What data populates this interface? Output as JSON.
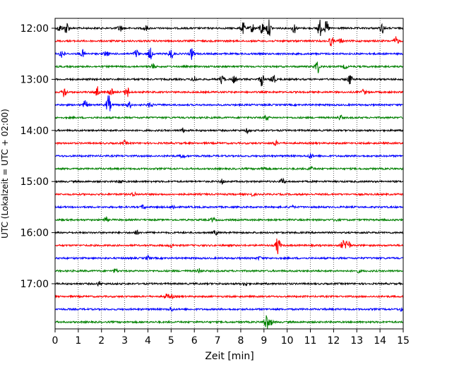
{
  "chart_data": {
    "type": "line",
    "title": "",
    "xlabel": "Zeit  [min]",
    "ylabel": "UTC (Lokalzeit = UTC + 02:00)",
    "xlim": [
      0,
      15
    ],
    "x_ticks": [
      "0",
      "1",
      "2",
      "3",
      "4",
      "5",
      "6",
      "7",
      "8",
      "9",
      "10",
      "11",
      "12",
      "13",
      "14",
      "15"
    ],
    "y_tick_labels": [
      "12:00",
      "13:00",
      "14:00",
      "15:00",
      "16:00",
      "17:00"
    ],
    "trace_interval_minutes": 15,
    "grid": "vertical dotted at each minute",
    "colors": [
      "#000000",
      "#ff0000",
      "#0000ff",
      "#008000"
    ],
    "series": [
      {
        "start": "12:00",
        "color": "#000000",
        "events": [
          {
            "t": 0.2,
            "amp": 5
          },
          {
            "t": 0.5,
            "amp": 9
          },
          {
            "t": 2.8,
            "amp": 5
          },
          {
            "t": 3.9,
            "amp": 4
          },
          {
            "t": 8.1,
            "amp": 8
          },
          {
            "t": 8.5,
            "amp": 6
          },
          {
            "t": 8.9,
            "amp": 9
          },
          {
            "t": 9.2,
            "amp": 12
          },
          {
            "t": 10.3,
            "amp": 7
          },
          {
            "t": 11.4,
            "amp": 12
          },
          {
            "t": 11.7,
            "amp": 10
          },
          {
            "t": 14.1,
            "amp": 7
          }
        ]
      },
      {
        "start": "12:15",
        "color": "#ff0000",
        "events": [
          {
            "t": 11.9,
            "amp": 7
          },
          {
            "t": 12.3,
            "amp": 3
          },
          {
            "t": 14.7,
            "amp": 6
          }
        ]
      },
      {
        "start": "12:30",
        "color": "#0000ff",
        "events": [
          {
            "t": 0.3,
            "amp": 7
          },
          {
            "t": 1.2,
            "amp": 5
          },
          {
            "t": 2.2,
            "amp": 4
          },
          {
            "t": 3.5,
            "amp": 6
          },
          {
            "t": 4.1,
            "amp": 8
          },
          {
            "t": 5.0,
            "amp": 7
          },
          {
            "t": 5.9,
            "amp": 8
          }
        ]
      },
      {
        "start": "12:45",
        "color": "#008000",
        "events": [
          {
            "t": 4.2,
            "amp": 4
          },
          {
            "t": 11.3,
            "amp": 10
          },
          {
            "t": 12.5,
            "amp": 3
          }
        ]
      },
      {
        "start": "13:00",
        "color": "#000000",
        "events": [
          {
            "t": 6.0,
            "amp": 4
          },
          {
            "t": 7.2,
            "amp": 7
          },
          {
            "t": 7.7,
            "amp": 5
          },
          {
            "t": 8.9,
            "amp": 9
          },
          {
            "t": 9.4,
            "amp": 8
          },
          {
            "t": 12.7,
            "amp": 8
          }
        ]
      },
      {
        "start": "13:15",
        "color": "#ff0000",
        "events": [
          {
            "t": 0.4,
            "amp": 8
          },
          {
            "t": 1.8,
            "amp": 9
          },
          {
            "t": 2.4,
            "amp": 5
          },
          {
            "t": 3.1,
            "amp": 8
          },
          {
            "t": 13.3,
            "amp": 4
          }
        ]
      },
      {
        "start": "13:30",
        "color": "#0000ff",
        "events": [
          {
            "t": 1.3,
            "amp": 6
          },
          {
            "t": 2.3,
            "amp": 14
          },
          {
            "t": 3.2,
            "amp": 4
          },
          {
            "t": 4.1,
            "amp": 4
          }
        ]
      },
      {
        "start": "13:45",
        "color": "#008000",
        "events": [
          {
            "t": 9.1,
            "amp": 4
          },
          {
            "t": 12.3,
            "amp": 3
          }
        ]
      },
      {
        "start": "14:00",
        "color": "#000000",
        "events": [
          {
            "t": 5.5,
            "amp": 3
          },
          {
            "t": 8.3,
            "amp": 3
          }
        ]
      },
      {
        "start": "14:15",
        "color": "#ff0000",
        "events": [
          {
            "t": 3.0,
            "amp": 3
          },
          {
            "t": 9.5,
            "amp": 3
          }
        ]
      },
      {
        "start": "14:30",
        "color": "#0000ff",
        "events": [
          {
            "t": 5.5,
            "amp": 3
          },
          {
            "t": 11.0,
            "amp": 3
          }
        ]
      },
      {
        "start": "14:45",
        "color": "#008000",
        "events": [
          {
            "t": 9.0,
            "amp": 3
          },
          {
            "t": 11.0,
            "amp": 3
          }
        ]
      },
      {
        "start": "15:00",
        "color": "#000000",
        "events": [
          {
            "t": 2.8,
            "amp": 3
          },
          {
            "t": 7.2,
            "amp": 3
          },
          {
            "t": 9.8,
            "amp": 4
          }
        ]
      },
      {
        "start": "15:15",
        "color": "#ff0000",
        "events": [
          {
            "t": 3.4,
            "amp": 3
          },
          {
            "t": 8.5,
            "amp": 2
          }
        ]
      },
      {
        "start": "15:30",
        "color": "#0000ff",
        "events": [
          {
            "t": 3.8,
            "amp": 3
          },
          {
            "t": 5.1,
            "amp": 3
          },
          {
            "t": 10.2,
            "amp": 2
          }
        ]
      },
      {
        "start": "15:45",
        "color": "#008000",
        "events": [
          {
            "t": 2.2,
            "amp": 3
          },
          {
            "t": 6.8,
            "amp": 3
          },
          {
            "t": 12.1,
            "amp": 2
          }
        ]
      },
      {
        "start": "16:00",
        "color": "#000000",
        "events": [
          {
            "t": 3.5,
            "amp": 3
          },
          {
            "t": 6.9,
            "amp": 3
          }
        ]
      },
      {
        "start": "16:15",
        "color": "#ff0000",
        "events": [
          {
            "t": 9.6,
            "amp": 13
          },
          {
            "t": 12.4,
            "amp": 6
          },
          {
            "t": 12.6,
            "amp": 11
          },
          {
            "t": 5.0,
            "amp": 3
          }
        ]
      },
      {
        "start": "16:30",
        "color": "#0000ff",
        "events": [
          {
            "t": 4.0,
            "amp": 3
          },
          {
            "t": 8.8,
            "amp": 2
          }
        ]
      },
      {
        "start": "16:45",
        "color": "#008000",
        "events": [
          {
            "t": 2.6,
            "amp": 3
          },
          {
            "t": 6.2,
            "amp": 3
          },
          {
            "t": 13.1,
            "amp": 2
          }
        ]
      },
      {
        "start": "17:00",
        "color": "#000000",
        "events": [
          {
            "t": 1.9,
            "amp": 3
          },
          {
            "t": 8.2,
            "amp": 3
          }
        ]
      },
      {
        "start": "17:15",
        "color": "#ff0000",
        "events": [
          {
            "t": 4.8,
            "amp": 3
          },
          {
            "t": 5.0,
            "amp": 3
          }
        ]
      },
      {
        "start": "17:30",
        "color": "#0000ff",
        "events": [
          {
            "t": 5.0,
            "amp": 3
          },
          {
            "t": 14.9,
            "amp": 2
          }
        ]
      },
      {
        "start": "17:45",
        "color": "#008000",
        "events": [
          {
            "t": 9.1,
            "amp": 12
          },
          {
            "t": 9.3,
            "amp": 4
          }
        ]
      }
    ]
  }
}
